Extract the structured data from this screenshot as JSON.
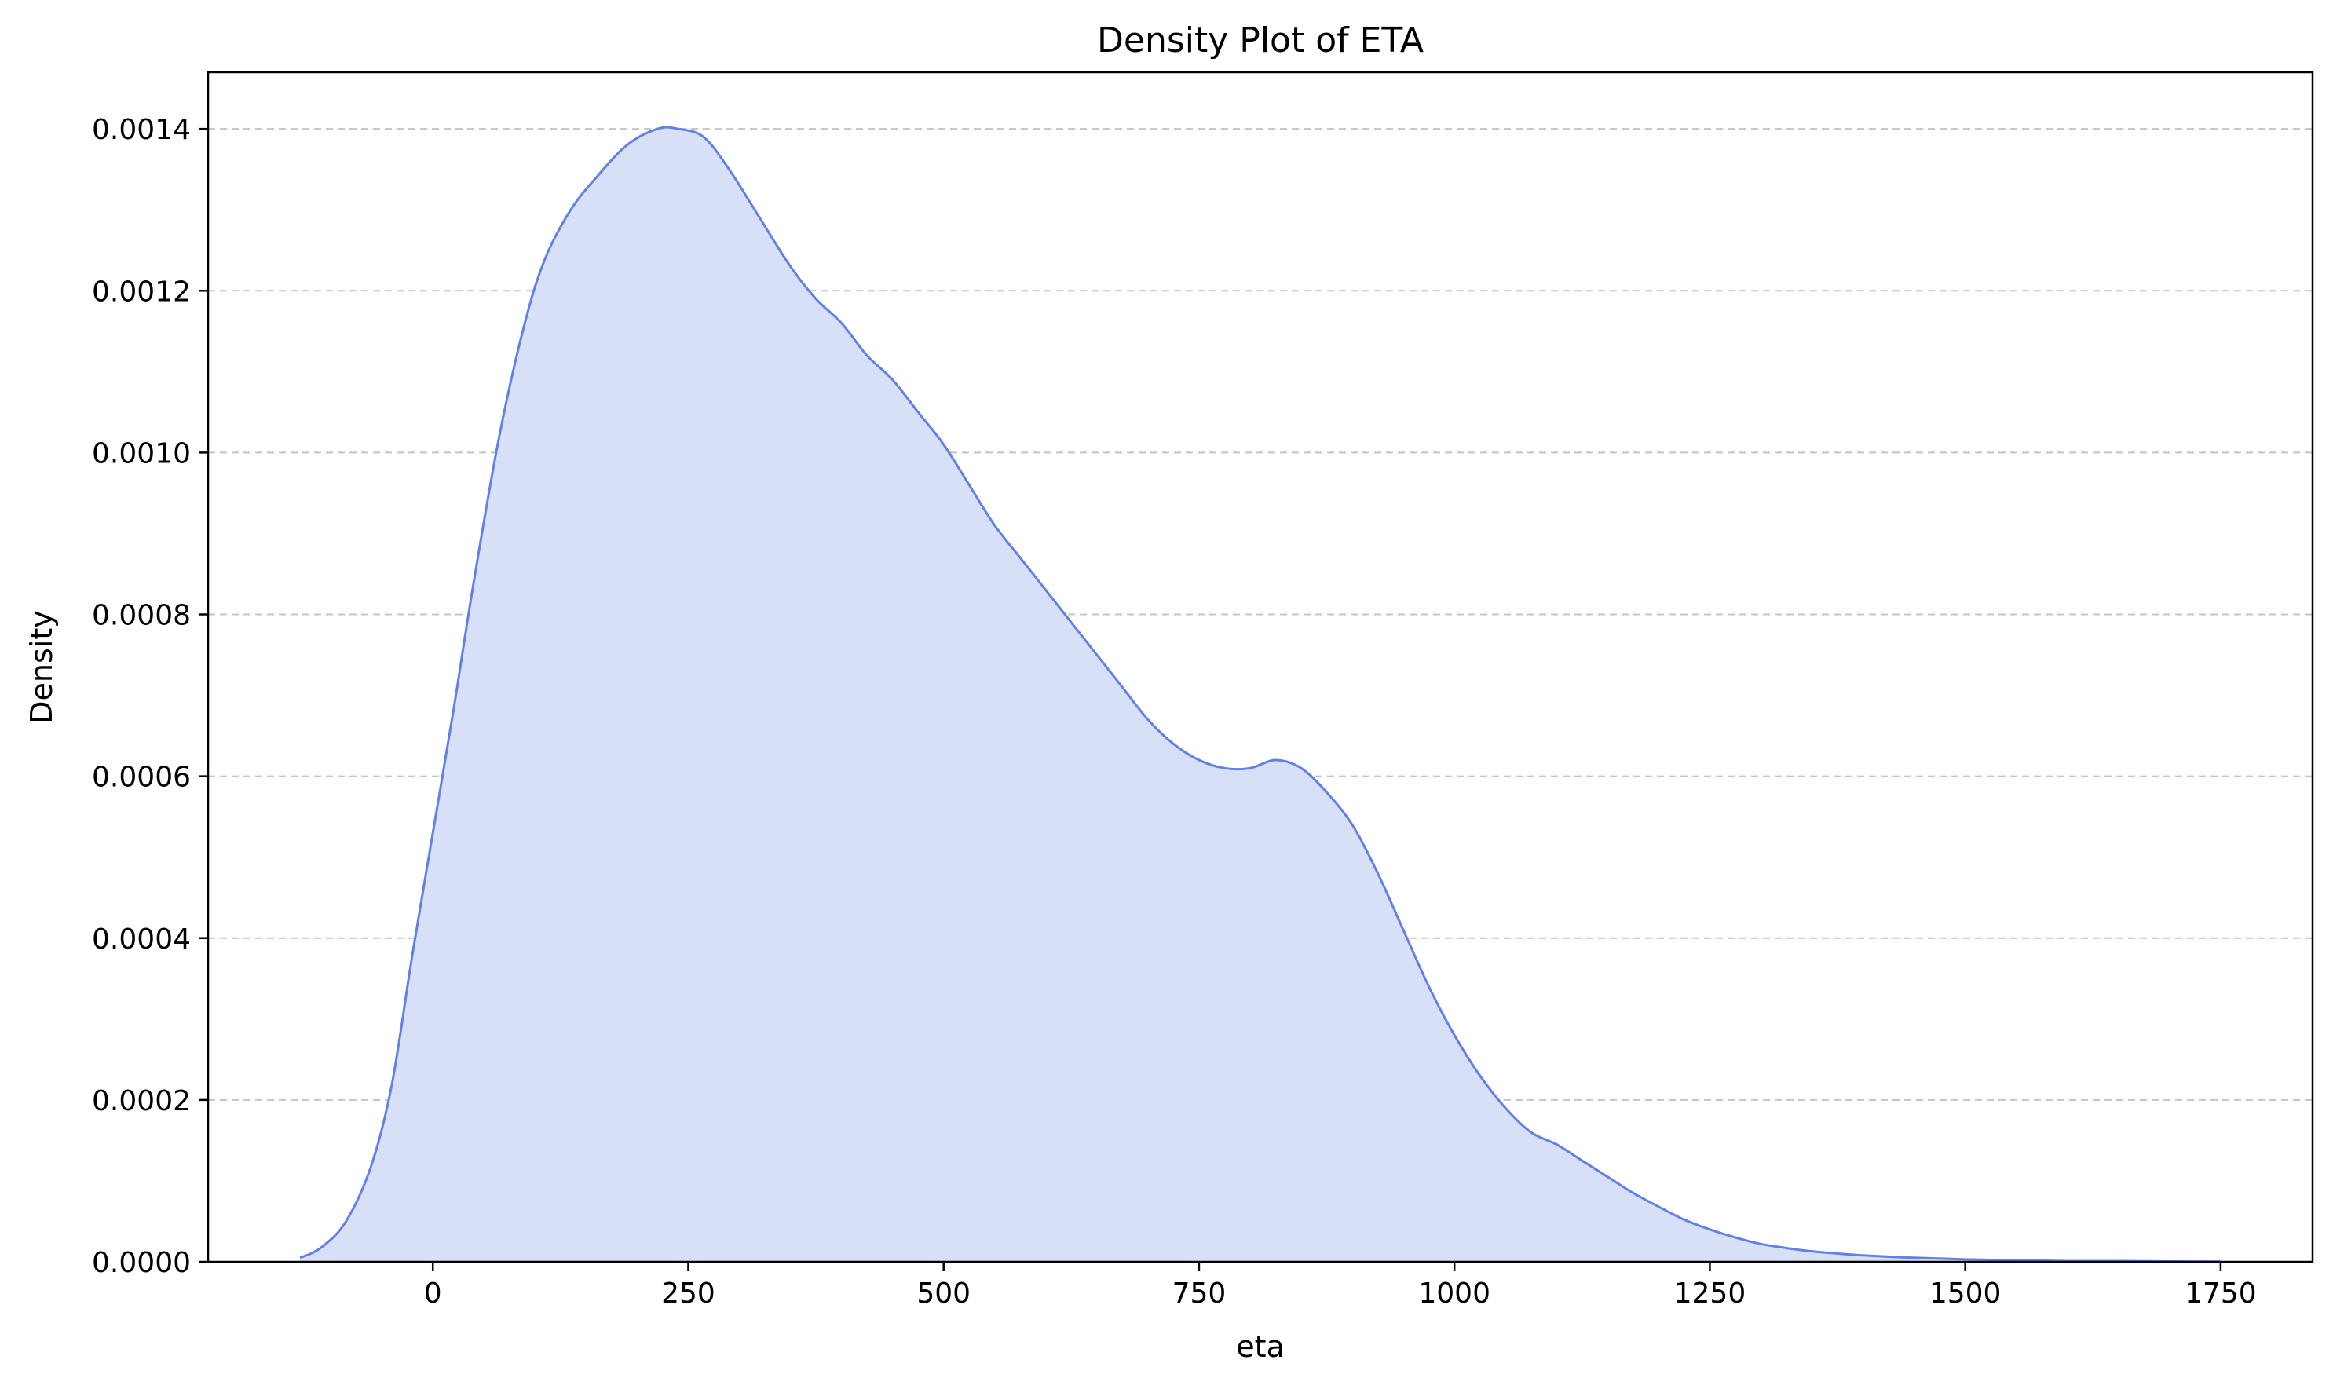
{
  "chart_data": {
    "type": "area",
    "title": "Density Plot of ETA",
    "xlabel": "eta",
    "ylabel": "Density",
    "xlim": [
      -220,
      1840
    ],
    "ylim": [
      0,
      0.00147
    ],
    "x_ticks": [
      0,
      250,
      500,
      750,
      1000,
      1250,
      1500,
      1750
    ],
    "x_tick_labels": [
      "0",
      "250",
      "500",
      "750",
      "1000",
      "1250",
      "1500",
      "1750"
    ],
    "y_ticks": [
      0,
      0.0002,
      0.0004,
      0.0006,
      0.0008,
      0.001,
      0.0012,
      0.0014
    ],
    "y_tick_labels": [
      "0.0000",
      "0.0002",
      "0.0004",
      "0.0006",
      "0.0008",
      "0.0010",
      "0.0012",
      "0.0014"
    ],
    "grid": "y-dashed",
    "legend": "none",
    "line_color": "#6280e6",
    "fill_color": "#d8e0f8",
    "grid_color": "#c4c4c4",
    "series": [
      {
        "x": [
          -130,
          -110,
          -85,
          -60,
          -40,
          -20,
          0,
          20,
          40,
          65,
          90,
          110,
          135,
          160,
          190,
          220,
          240,
          265,
          290,
          320,
          350,
          375,
          400,
          425,
          450,
          475,
          500,
          525,
          550,
          575,
          600,
          625,
          650,
          675,
          700,
          725,
          750,
          775,
          800,
          825,
          850,
          875,
          900,
          925,
          950,
          975,
          1000,
          1025,
          1050,
          1075,
          1100,
          1125,
          1150,
          1175,
          1200,
          1225,
          1250,
          1275,
          1300,
          1325,
          1350,
          1400,
          1450,
          1500,
          1550,
          1600,
          1650,
          1700,
          1750
        ],
        "values": [
          5e-06,
          1.7e-05,
          5e-05,
          0.00012,
          0.00022,
          0.00038,
          0.00053,
          0.00068,
          0.00084,
          0.00102,
          0.00116,
          0.00124,
          0.0013,
          0.00134,
          0.00138,
          0.0014,
          0.0014,
          0.00139,
          0.00135,
          0.00129,
          0.00123,
          0.00119,
          0.00116,
          0.00112,
          0.00109,
          0.00105,
          0.00101,
          0.00096,
          0.00091,
          0.00087,
          0.00083,
          0.00079,
          0.00075,
          0.00071,
          0.00067,
          0.00064,
          0.00062,
          0.00061,
          0.00061,
          0.00062,
          0.00061,
          0.00058,
          0.00054,
          0.00048,
          0.00041,
          0.00034,
          0.00028,
          0.00023,
          0.00019,
          0.00016,
          0.000145,
          0.000125,
          0.000105,
          8.5e-05,
          6.8e-05,
          5.2e-05,
          4e-05,
          3e-05,
          2.2e-05,
          1.7e-05,
          1.3e-05,
          8e-06,
          5e-06,
          3e-06,
          2e-06,
          1e-06,
          1e-06,
          5e-07,
          2e-07
        ]
      }
    ]
  }
}
